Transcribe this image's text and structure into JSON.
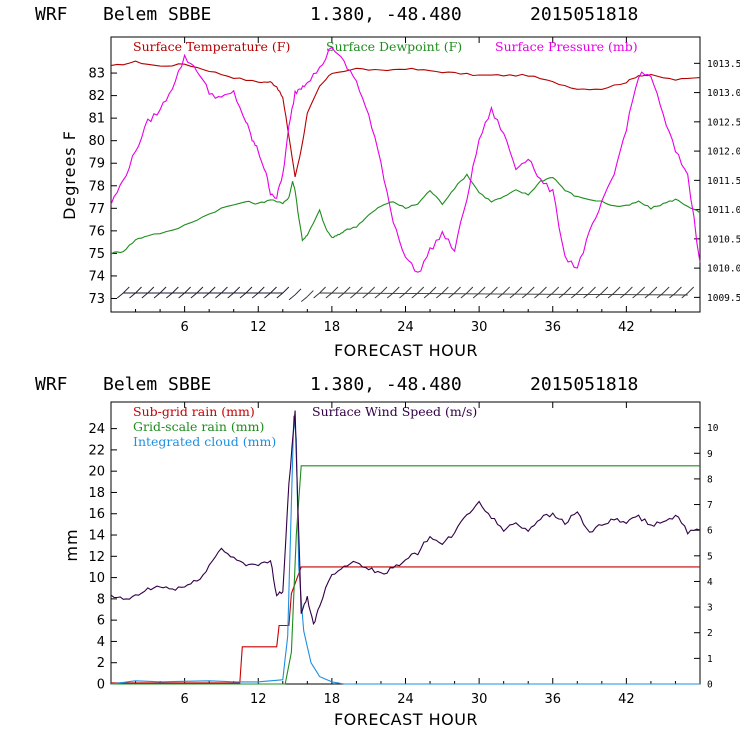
{
  "colors": {
    "temperature": "#b40000",
    "dewpoint": "#1e8c1e",
    "pressure": "#e600e6",
    "subgrid_rain": "#c80000",
    "gridscale_rain": "#1e8c1e",
    "cloud": "#1e90e0",
    "wind": "#320046",
    "axis": "#000000"
  },
  "chart_data": [
    {
      "type": "line",
      "title": {
        "model": "WRF",
        "station": "Belem SBBE",
        "coords": "1.380, -48.480",
        "init": "2015051818"
      },
      "xlabel": "FORECAST HOUR",
      "ylabel": "Degrees F",
      "xlim": [
        0,
        48
      ],
      "ylim": [
        72.4,
        84.6
      ],
      "y2lim": [
        1009.25,
        1013.95
      ],
      "xticks": [
        "6",
        "12",
        "18",
        "24",
        "30",
        "36",
        "42"
      ],
      "xtick_values": [
        6,
        12,
        18,
        24,
        30,
        36,
        42
      ],
      "yticks": [
        "73",
        "74",
        "75",
        "76",
        "77",
        "78",
        "79",
        "80",
        "81",
        "82",
        "83"
      ],
      "ytick_values": [
        73,
        74,
        75,
        76,
        77,
        78,
        79,
        80,
        81,
        82,
        83
      ],
      "y2ticks": [
        "1009.5",
        "1010.0",
        "1010.5",
        "1011.0",
        "1011.5",
        "1012.0",
        "1012.5",
        "1013.0",
        "1013.5"
      ],
      "y2tick_values": [
        1009.5,
        1010.0,
        1010.5,
        1011.0,
        1011.5,
        1012.0,
        1012.5,
        1013.0,
        1013.5
      ],
      "legend": [
        "Surface Temperature (F)",
        "Surface Dewpoint (F)",
        "Surface Pressure (mb)"
      ],
      "series": [
        {
          "name": "Surface Temperature (F)",
          "axis": "left",
          "x": [
            0,
            2,
            4,
            6,
            8,
            10,
            12,
            13,
            13.5,
            14,
            14.5,
            15,
            15.5,
            16,
            17,
            18,
            20,
            22,
            24,
            26,
            28,
            30,
            32,
            34,
            36,
            38,
            40,
            42,
            43,
            44,
            46,
            48
          ],
          "values": [
            83.3,
            83.5,
            83.3,
            83.4,
            83.1,
            82.8,
            82.6,
            82.6,
            82.4,
            81.9,
            80.2,
            78.4,
            79.6,
            81.2,
            82.4,
            83.0,
            83.2,
            83.1,
            83.2,
            83.1,
            83.0,
            82.9,
            82.9,
            82.9,
            82.6,
            82.3,
            82.3,
            82.6,
            82.9,
            82.9,
            82.7,
            82.8
          ]
        },
        {
          "name": "Surface Dewpoint (F)",
          "axis": "left",
          "x": [
            0,
            1,
            2,
            3,
            5,
            7,
            9,
            11,
            12,
            13,
            14,
            14.5,
            14.8,
            15,
            15.3,
            15.6,
            16,
            17,
            17.5,
            18,
            18.5,
            19,
            20,
            21,
            22,
            23,
            24,
            25,
            26,
            27,
            28,
            29,
            30,
            31,
            32,
            33,
            34,
            35,
            36,
            37,
            38,
            40,
            41,
            42,
            43,
            44,
            45,
            46,
            47,
            48
          ],
          "values": [
            75.0,
            75.1,
            75.6,
            75.8,
            76.0,
            76.5,
            77.0,
            77.3,
            77.2,
            77.4,
            77.2,
            77.5,
            78.2,
            77.8,
            76.6,
            75.6,
            75.8,
            76.9,
            76.1,
            75.7,
            75.8,
            76.0,
            76.2,
            76.7,
            77.1,
            77.3,
            77.0,
            77.2,
            77.8,
            77.2,
            77.9,
            78.5,
            77.7,
            77.3,
            77.5,
            77.8,
            77.6,
            78.2,
            78.4,
            77.8,
            77.5,
            77.3,
            77.1,
            77.1,
            77.3,
            77.0,
            77.2,
            77.4,
            77.1,
            76.8
          ]
        },
        {
          "name": "Surface Pressure (mb)",
          "axis": "right",
          "x": [
            0,
            1,
            2,
            3,
            4,
            5,
            6,
            7,
            8,
            9,
            10,
            11,
            11.5,
            12,
            12.5,
            13,
            13.5,
            14,
            14.5,
            15,
            15.5,
            16,
            17,
            18,
            19,
            20,
            21,
            22,
            23,
            24,
            25,
            26,
            27,
            28,
            29,
            30,
            31,
            32,
            33,
            34,
            35,
            36,
            37,
            38,
            39,
            40,
            41,
            42,
            43,
            44,
            45,
            46,
            47,
            48
          ],
          "values": [
            1011.1,
            1011.5,
            1012.0,
            1012.5,
            1012.7,
            1013.1,
            1013.6,
            1013.4,
            1013.0,
            1012.9,
            1013.0,
            1012.5,
            1012.2,
            1012.0,
            1011.7,
            1011.3,
            1011.2,
            1011.6,
            1012.4,
            1013.0,
            1013.1,
            1013.2,
            1013.4,
            1013.8,
            1013.5,
            1013.2,
            1012.6,
            1011.8,
            1010.8,
            1010.2,
            1009.9,
            1010.3,
            1010.6,
            1010.3,
            1011.2,
            1012.2,
            1012.7,
            1012.3,
            1011.7,
            1011.9,
            1011.5,
            1011.3,
            1010.2,
            1010.0,
            1010.6,
            1011.1,
            1011.6,
            1012.4,
            1013.3,
            1013.3,
            1012.6,
            1012.0,
            1011.6,
            1010.1
          ]
        }
      ],
      "wind_barbs": "Surface wind barbs along lower axis"
    },
    {
      "type": "line",
      "title": {
        "model": "WRF",
        "station": "Belem SBBE",
        "coords": "1.380, -48.480",
        "init": "2015051818"
      },
      "xlabel": "FORECAST HOUR",
      "ylabel": "mm",
      "xlim": [
        0,
        48
      ],
      "ylim": [
        0,
        26.5
      ],
      "y2lim": [
        0,
        11.0
      ],
      "xticks": [
        "6",
        "12",
        "18",
        "24",
        "30",
        "36",
        "42"
      ],
      "xtick_values": [
        6,
        12,
        18,
        24,
        30,
        36,
        42
      ],
      "yticks": [
        "0",
        "2",
        "4",
        "6",
        "8",
        "10",
        "12",
        "14",
        "16",
        "18",
        "20",
        "22",
        "24"
      ],
      "ytick_values": [
        0,
        2,
        4,
        6,
        8,
        10,
        12,
        14,
        16,
        18,
        20,
        22,
        24
      ],
      "y2ticks": [
        "0",
        "1",
        "2",
        "3",
        "4",
        "5",
        "6",
        "7",
        "8",
        "9",
        "10"
      ],
      "y2tick_values": [
        0,
        1,
        2,
        3,
        4,
        5,
        6,
        7,
        8,
        9,
        10
      ],
      "legend": [
        "Sub-grid rain (mm)",
        "Surface Wind Speed (m/s)",
        "Grid-scale rain (mm)",
        "Integrated cloud (mm)"
      ],
      "series": [
        {
          "name": "Sub-grid rain (mm)",
          "axis": "left",
          "x": [
            0,
            10.5,
            10.7,
            13.5,
            13.7,
            14.5,
            14.7,
            15.5,
            48
          ],
          "values": [
            0.1,
            0.1,
            3.5,
            3.5,
            5.5,
            5.5,
            8.5,
            11.0,
            11.0
          ]
        },
        {
          "name": "Grid-scale rain (mm)",
          "axis": "left",
          "x": [
            0,
            14.2,
            14.7,
            15.1,
            15.5,
            48
          ],
          "values": [
            0,
            0,
            3.0,
            14.0,
            20.5,
            20.5
          ]
        },
        {
          "name": "Integrated cloud (mm)",
          "axis": "left",
          "x": [
            0,
            2,
            4,
            8,
            10,
            12,
            14,
            14.4,
            14.7,
            14.9,
            15.1,
            15.3,
            15.7,
            16.3,
            17,
            18,
            19,
            48
          ],
          "values": [
            0,
            0.3,
            0.2,
            0.3,
            0.2,
            0.2,
            0.4,
            4.5,
            17.0,
            25.2,
            23.0,
            11.0,
            5.0,
            2.0,
            0.7,
            0.2,
            0,
            0
          ]
        },
        {
          "name": "Surface Wind Speed (m/s)",
          "axis": "right",
          "x": [
            0,
            1,
            2,
            3,
            4,
            5,
            6,
            7,
            8,
            9,
            10,
            11,
            12,
            13,
            13.5,
            14,
            14.5,
            15,
            15.5,
            16,
            16.5,
            17,
            18,
            19,
            20,
            21,
            22,
            23,
            24,
            25,
            26,
            27,
            28,
            29,
            30,
            31,
            32,
            33,
            34,
            35,
            36,
            37,
            38,
            39,
            40,
            41,
            42,
            43,
            44,
            45,
            46,
            47,
            48
          ],
          "values": [
            3.4,
            3.3,
            3.4,
            3.7,
            3.8,
            3.7,
            3.8,
            4.0,
            4.6,
            5.3,
            4.9,
            4.7,
            4.6,
            4.8,
            3.5,
            3.6,
            7.8,
            10.6,
            2.7,
            3.4,
            2.3,
            3.1,
            4.3,
            4.6,
            4.8,
            4.5,
            4.3,
            4.5,
            4.9,
            5.1,
            5.8,
            5.4,
            5.9,
            6.6,
            7.1,
            6.5,
            6.0,
            6.3,
            6.0,
            6.5,
            6.6,
            6.3,
            6.7,
            5.9,
            6.2,
            6.4,
            6.3,
            6.5,
            6.2,
            6.3,
            6.6,
            5.9,
            6.0
          ]
        }
      ]
    }
  ]
}
